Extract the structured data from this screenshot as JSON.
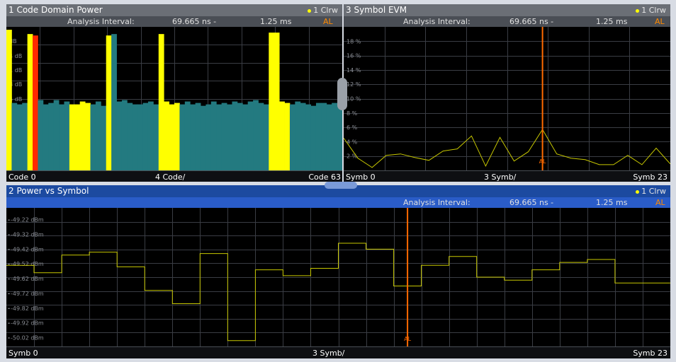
{
  "windows": {
    "cdp": {
      "title": "1 Code Domain Power",
      "trace": "1 Clrw",
      "interval_label": "Analysis Interval:",
      "interval_start": "69.665 ns -",
      "interval_end": "1.25 ms",
      "al_flag": "AL",
      "x_left": "Code 0",
      "x_center": "4 Code/",
      "x_right": "Code 63"
    },
    "evm": {
      "title": "3 Symbol EVM",
      "trace": "1 Clrw",
      "interval_label": "Analysis Interval:",
      "interval_start": "69.665 ns -",
      "interval_end": "1.25 ms",
      "al_flag": "AL",
      "x_left": "Symb 0",
      "x_center": "3 Symb/",
      "x_right": "Symb 23"
    },
    "pvs": {
      "title": "2 Power vs Symbol",
      "trace": "1 Clrw",
      "interval_label": "Analysis Interval:",
      "interval_start": "69.665 ns -",
      "interval_end": "1.25 ms",
      "al_flag": "AL",
      "x_left": "Symb 0",
      "x_center": "3 Symb/",
      "x_right": "Symb 23"
    }
  },
  "chart_data": [
    {
      "type": "bar",
      "chart": "cdp",
      "y_tick_labels": [
        "dB",
        "4 dB",
        "1 dB",
        "8 dB",
        "5 dB"
      ],
      "ylim": [
        0,
        10
      ],
      "x": [
        0,
        1,
        2,
        3,
        4,
        5,
        6,
        7,
        8,
        9,
        10,
        11,
        12,
        13,
        14,
        15,
        16,
        17,
        18,
        19,
        20,
        21,
        22,
        23,
        24,
        25,
        26,
        27,
        28,
        29,
        30,
        31,
        32,
        33,
        34,
        35,
        36,
        37,
        38,
        39,
        40,
        41,
        42,
        43,
        44,
        45,
        46,
        47,
        48,
        49,
        50,
        51,
        52,
        53,
        54,
        55,
        56,
        57,
        58,
        59,
        60,
        61,
        62,
        63
      ],
      "values": [
        9.8,
        4.7,
        4.6,
        4.7,
        9.5,
        9.4,
        4.9,
        4.6,
        4.7,
        4.9,
        4.6,
        4.8,
        4.6,
        4.6,
        4.8,
        4.7,
        4.6,
        4.8,
        4.5,
        9.4,
        9.5,
        4.8,
        4.9,
        4.7,
        4.6,
        4.6,
        4.7,
        4.8,
        4.6,
        9.5,
        4.8,
        4.6,
        4.7,
        4.6,
        4.8,
        4.6,
        4.7,
        4.5,
        4.6,
        4.8,
        4.6,
        4.7,
        4.6,
        4.8,
        4.7,
        4.6,
        4.8,
        4.9,
        4.7,
        4.6,
        9.6,
        9.6,
        4.8,
        4.7,
        4.6,
        4.8,
        4.7,
        4.6,
        4.5,
        4.7,
        4.7,
        4.6,
        4.7,
        4.6
      ],
      "colors": {
        "active": "#ffff00",
        "inactive": "#237a80",
        "selected": "#ff2a00"
      },
      "selected_code": 5,
      "active_codes": [
        0,
        4,
        5,
        12,
        13,
        14,
        15,
        19,
        29,
        30,
        31,
        32,
        50,
        51,
        52,
        53
      ]
    },
    {
      "type": "line",
      "chart": "evm",
      "y_tick_labels": [
        "18 %",
        "16 %",
        "14 %",
        "12 %",
        "10 %",
        "8 %",
        "6 %",
        "4 %",
        "2 %"
      ],
      "ylim": [
        0,
        20
      ],
      "x": [
        0,
        1,
        2,
        3,
        4,
        5,
        6,
        7,
        8,
        9,
        10,
        11,
        12,
        13,
        14,
        15,
        16,
        17,
        18,
        19,
        20,
        21,
        22,
        23
      ],
      "values": [
        4.5,
        1.7,
        0.4,
        2.1,
        2.3,
        1.8,
        1.4,
        2.7,
        3.0,
        4.8,
        0.6,
        4.6,
        1.3,
        2.6,
        5.7,
        2.3,
        1.7,
        1.5,
        0.8,
        0.8,
        2.1,
        0.8,
        3.1,
        0.9
      ],
      "marker": {
        "x": 14,
        "label": "AL",
        "color": "#ff6a00"
      },
      "line_color": "#c8c800"
    },
    {
      "type": "line",
      "chart": "pvs",
      "step": true,
      "y_tick_labels": [
        "-49.22 dBm",
        "-49.32 dBm",
        "-49.42 dBm",
        "-49.52 dBm",
        "-49.62 dBm",
        "-49.72 dBm",
        "-49.82 dBm",
        "-49.92 dBm",
        "-50.02 dBm"
      ],
      "ylim": [
        -50.08,
        -49.14
      ],
      "x": [
        0,
        1,
        2,
        3,
        4,
        5,
        6,
        7,
        8,
        9,
        10,
        11,
        12,
        13,
        14,
        15,
        16,
        17,
        18,
        19,
        20,
        21,
        22,
        23
      ],
      "values": [
        -49.53,
        -49.58,
        -49.46,
        -49.44,
        -49.54,
        -49.7,
        -49.79,
        -49.45,
        -50.04,
        -49.56,
        -49.6,
        -49.55,
        -49.38,
        -49.42,
        -49.67,
        -49.53,
        -49.47,
        -49.61,
        -49.63,
        -49.56,
        -49.51,
        -49.49,
        -49.65,
        -49.65
      ],
      "marker": {
        "x": 14,
        "label": "AL",
        "color": "#ff6a00"
      },
      "line_color": "#c8c800"
    }
  ]
}
